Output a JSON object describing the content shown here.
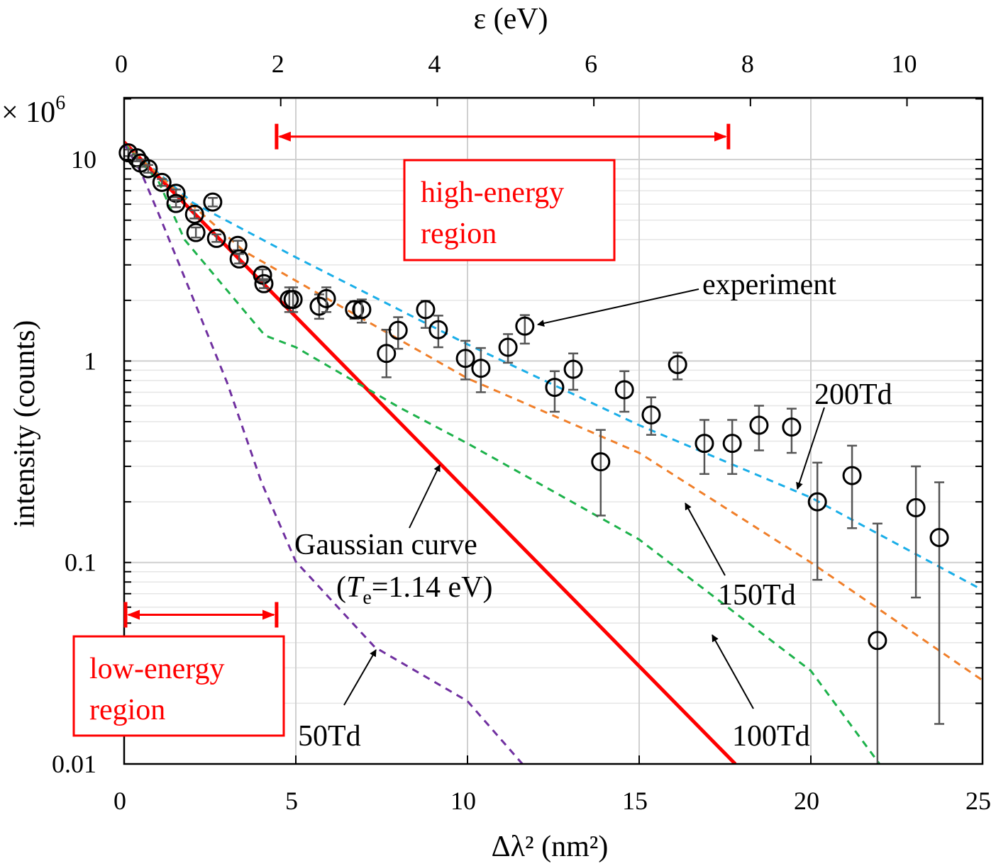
{
  "chart_data": {
    "type": "scatter",
    "title": "",
    "xlabel": "Δλ² (nm²)",
    "ylabel": "intensity (counts)",
    "y_multiplier": "× 10^6",
    "y_multiplier_base": "× 10",
    "y_multiplier_exp": "6",
    "x2label": "ε (eV)",
    "xlim": [
      0,
      25
    ],
    "ylim": [
      0.01,
      20
    ],
    "yscale": "log",
    "grid": true,
    "x_ticks": [
      0,
      5,
      10,
      15,
      20,
      25
    ],
    "x_tick_labels": [
      "0",
      "5",
      "10",
      "15",
      "20",
      "25"
    ],
    "y_ticks": [
      10,
      1,
      0.1,
      0.01
    ],
    "y_tick_labels": [
      "10",
      "1",
      "0.1",
      "0.01"
    ],
    "top_axis": {
      "ticks": [
        0,
        2,
        4,
        6,
        8,
        10
      ],
      "tick_labels": [
        "0",
        "2",
        "4",
        "6",
        "8",
        "10"
      ],
      "nm2_per_eV": 2.28
    },
    "experiment": {
      "name": "experiment",
      "marker": "open-circle",
      "color": "#000000",
      "errorbar_color": "#555555",
      "points": [
        {
          "x": 0.12,
          "y": 10.8,
          "lo": 10.4,
          "hi": 11.2
        },
        {
          "x": 0.37,
          "y": 10.2,
          "lo": 9.8,
          "hi": 10.6
        },
        {
          "x": 0.48,
          "y": 9.6,
          "lo": 9.2,
          "hi": 10.0
        },
        {
          "x": 0.7,
          "y": 9.0,
          "lo": 8.6,
          "hi": 9.4
        },
        {
          "x": 1.1,
          "y": 7.7,
          "lo": 7.4,
          "hi": 8.0
        },
        {
          "x": 1.51,
          "y": 6.8,
          "lo": 6.5,
          "hi": 7.1
        },
        {
          "x": 1.51,
          "y": 6.05,
          "lo": 5.8,
          "hi": 6.3
        },
        {
          "x": 2.05,
          "y": 5.35,
          "lo": 5.1,
          "hi": 5.6
        },
        {
          "x": 2.09,
          "y": 4.34,
          "lo": 4.1,
          "hi": 4.6
        },
        {
          "x": 2.58,
          "y": 6.15,
          "lo": 5.85,
          "hi": 6.45
        },
        {
          "x": 2.69,
          "y": 4.06,
          "lo": 3.9,
          "hi": 4.25
        },
        {
          "x": 3.31,
          "y": 3.75,
          "lo": 3.55,
          "hi": 3.95
        },
        {
          "x": 3.35,
          "y": 3.21,
          "lo": 3.05,
          "hi": 3.4
        },
        {
          "x": 4.03,
          "y": 2.67,
          "lo": 2.5,
          "hi": 2.85
        },
        {
          "x": 4.07,
          "y": 2.42,
          "lo": 2.3,
          "hi": 2.55
        },
        {
          "x": 4.81,
          "y": 2.02,
          "lo": 1.75,
          "hi": 2.32
        },
        {
          "x": 4.92,
          "y": 2.02,
          "lo": 1.75,
          "hi": 2.32
        },
        {
          "x": 5.68,
          "y": 1.87,
          "lo": 1.62,
          "hi": 2.14
        },
        {
          "x": 5.89,
          "y": 2.04,
          "lo": 1.75,
          "hi": 2.32
        },
        {
          "x": 6.71,
          "y": 1.8,
          "lo": 1.62,
          "hi": 1.98
        },
        {
          "x": 6.92,
          "y": 1.8,
          "lo": 1.55,
          "hi": 2.02
        },
        {
          "x": 7.64,
          "y": 1.09,
          "lo": 0.83,
          "hi": 1.43
        },
        {
          "x": 7.98,
          "y": 1.42,
          "lo": 1.15,
          "hi": 1.65
        },
        {
          "x": 8.78,
          "y": 1.8,
          "lo": 1.46,
          "hi": 1.99
        },
        {
          "x": 9.15,
          "y": 1.43,
          "lo": 1.17,
          "hi": 1.68
        },
        {
          "x": 9.94,
          "y": 1.03,
          "lo": 0.81,
          "hi": 1.26
        },
        {
          "x": 10.39,
          "y": 0.92,
          "lo": 0.7,
          "hi": 1.16
        },
        {
          "x": 11.18,
          "y": 1.17,
          "lo": 0.98,
          "hi": 1.36
        },
        {
          "x": 11.67,
          "y": 1.49,
          "lo": 1.22,
          "hi": 1.69
        },
        {
          "x": 12.54,
          "y": 0.74,
          "lo": 0.56,
          "hi": 0.89
        },
        {
          "x": 13.08,
          "y": 0.91,
          "lo": 0.72,
          "hi": 1.09
        },
        {
          "x": 13.88,
          "y": 0.316,
          "lo": 0.171,
          "hi": 0.455
        },
        {
          "x": 14.57,
          "y": 0.72,
          "lo": 0.56,
          "hi": 0.89
        },
        {
          "x": 15.35,
          "y": 0.54,
          "lo": 0.43,
          "hi": 0.66
        },
        {
          "x": 16.12,
          "y": 0.96,
          "lo": 0.81,
          "hi": 1.1
        },
        {
          "x": 16.9,
          "y": 0.39,
          "lo": 0.275,
          "hi": 0.51
        },
        {
          "x": 17.71,
          "y": 0.39,
          "lo": 0.275,
          "hi": 0.51
        },
        {
          "x": 18.49,
          "y": 0.48,
          "lo": 0.36,
          "hi": 0.6
        },
        {
          "x": 19.44,
          "y": 0.47,
          "lo": 0.35,
          "hi": 0.58
        },
        {
          "x": 20.19,
          "y": 0.2,
          "lo": 0.082,
          "hi": 0.313
        },
        {
          "x": 21.2,
          "y": 0.27,
          "lo": 0.148,
          "hi": 0.38
        },
        {
          "x": 21.94,
          "y": 0.041,
          "lo": 0.01,
          "hi": 0.156
        },
        {
          "x": 23.06,
          "y": 0.187,
          "lo": 0.067,
          "hi": 0.3
        },
        {
          "x": 23.74,
          "y": 0.133,
          "lo": 0.0158,
          "hi": 0.25
        }
      ]
    },
    "series": [
      {
        "name": "Gaussian curve",
        "color": "#ff0000",
        "style": "solid",
        "x": [
          0,
          17.8
        ],
        "y": [
          12.2,
          0.01
        ]
      },
      {
        "name": "200Td",
        "color": "#1aaee8",
        "style": "dashed",
        "x": [
          0,
          2,
          5,
          10,
          15,
          20,
          25
        ],
        "y": [
          12,
          6.1,
          3.27,
          1.21,
          0.48,
          0.21,
          0.073
        ]
      },
      {
        "name": "150Td",
        "color": "#f07f2a",
        "style": "dashed",
        "x": [
          0,
          2,
          3.5,
          6.6,
          10,
          15,
          20,
          25
        ],
        "y": [
          12,
          5.9,
          3.5,
          1.75,
          0.82,
          0.35,
          0.1,
          0.026
        ]
      },
      {
        "name": "100Td",
        "color": "#1db24b",
        "style": "dashed",
        "x": [
          0,
          1,
          1.76,
          4.1,
          5,
          8,
          10,
          15,
          20,
          22
        ],
        "y": [
          12,
          7.8,
          4.0,
          1.34,
          1.17,
          0.59,
          0.39,
          0.13,
          0.029,
          0.01
        ]
      },
      {
        "name": "50Td",
        "color": "#7030a0",
        "style": "dashed",
        "x": [
          0,
          0.5,
          1,
          2,
          3,
          4,
          5,
          7.3,
          10,
          11.6
        ],
        "y": [
          12,
          8.6,
          5.4,
          2.06,
          0.78,
          0.25,
          0.101,
          0.038,
          0.0205,
          0.01
        ]
      }
    ],
    "regions": [
      {
        "label_line1": "high-energy",
        "label_line2": "region",
        "x_range": [
          4.44,
          17.6
        ],
        "arrow_y": 13.0,
        "color": "#ff0000"
      },
      {
        "label_line1": "low-energy",
        "label_line2": "region",
        "x_range": [
          0,
          4.44
        ],
        "arrow_y": 0.055,
        "color": "#ff0000"
      }
    ],
    "annotations": {
      "experiment": "experiment",
      "td200": "200Td",
      "td150": "150Td",
      "td100": "100Td",
      "td50": "50Td",
      "gaussian_line1": "Gaussian curve",
      "gaussian_open": "(",
      "gaussian_T": "T",
      "gaussian_sub": "e",
      "gaussian_rest": "=1.14 eV)"
    }
  }
}
